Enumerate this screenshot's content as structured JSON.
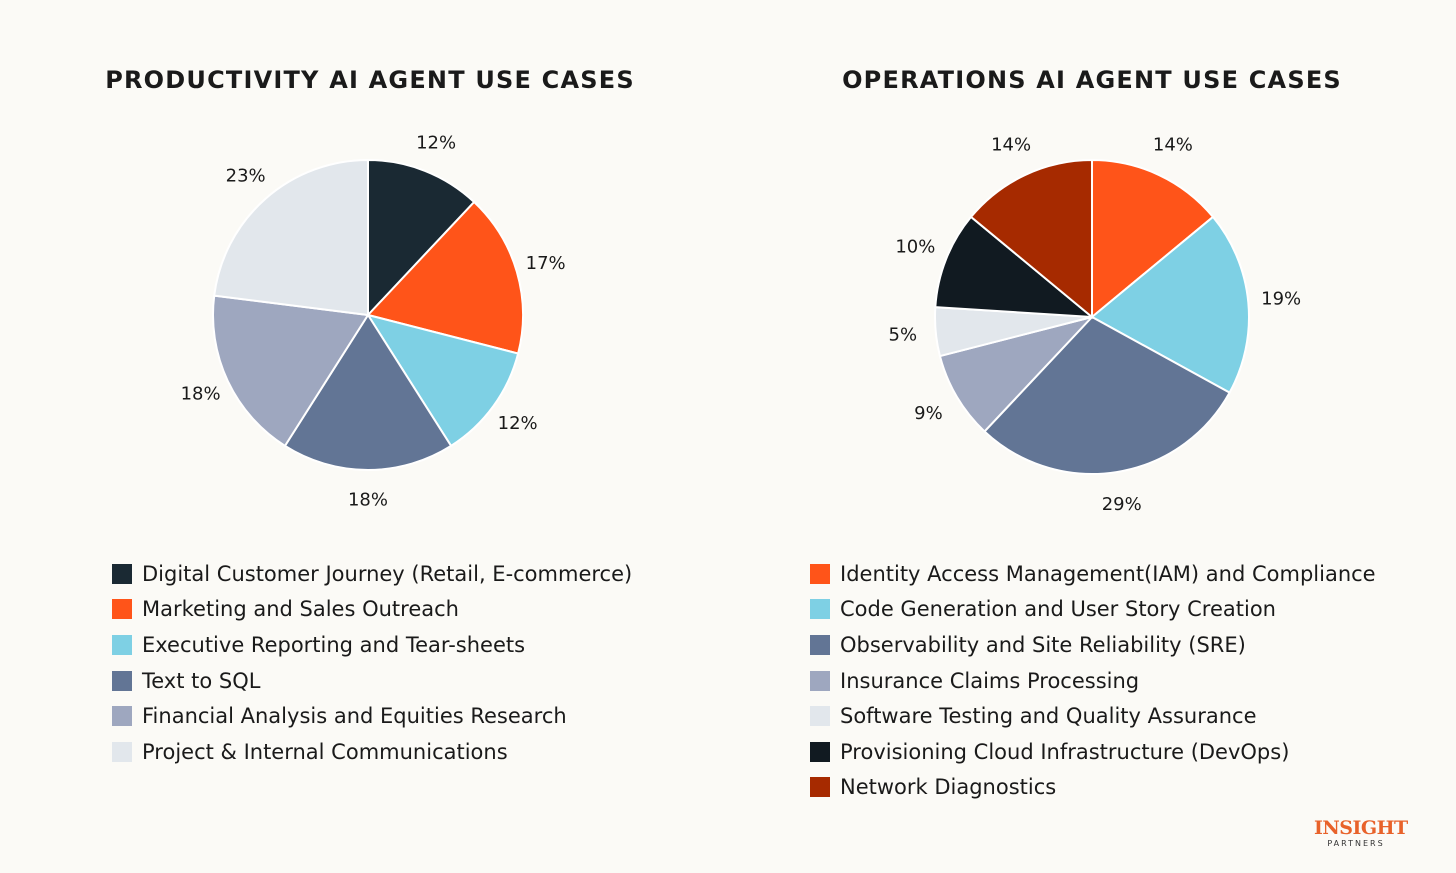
{
  "chart_data": [
    {
      "type": "pie",
      "title": "PRODUCTIVITY AI AGENT USE CASES",
      "slices": [
        {
          "label": "Digital Customer Journey (Retail, E-commerce)",
          "value": 12,
          "value_label": "12%",
          "color": "#1a2933"
        },
        {
          "label": "Marketing and Sales Outreach",
          "value": 17,
          "value_label": "17%",
          "color": "#ff5419"
        },
        {
          "label": "Executive Reporting and Tear-sheets",
          "value": 12,
          "value_label": "12%",
          "color": "#7ed0e4"
        },
        {
          "label": "Text to SQL",
          "value": 18,
          "value_label": "18%",
          "color": "#627595"
        },
        {
          "label": "Financial Analysis and Equities Research",
          "value": 18,
          "value_label": "18%",
          "color": "#9ea7bf"
        },
        {
          "label": "Project & Internal Communications",
          "value": 23,
          "value_label": "23%",
          "color": "#e2e7ec"
        }
      ]
    },
    {
      "type": "pie",
      "title": "OPERATIONS AI AGENT USE CASES",
      "slices": [
        {
          "label": "Identity Access Management(IAM) and Compliance",
          "value": 14,
          "value_label": "14%",
          "color": "#ff5419"
        },
        {
          "label": "Code Generation and User Story Creation",
          "value": 19,
          "value_label": "19%",
          "color": "#7ed0e4"
        },
        {
          "label": "Observability and Site Reliability (SRE)",
          "value": 29,
          "value_label": "29%",
          "color": "#627595"
        },
        {
          "label": "Insurance Claims Processing",
          "value": 9,
          "value_label": "9%",
          "color": "#9ea7bf"
        },
        {
          "label": "Software Testing and Quality Assurance",
          "value": 5,
          "value_label": "5%",
          "color": "#e2e7ec"
        },
        {
          "label": "Provisioning Cloud Infrastructure (DevOps)",
          "value": 10,
          "value_label": "10%",
          "color": "#111a21"
        },
        {
          "label": "Network Diagnostics",
          "value": 14,
          "value_label": "14%",
          "color": "#a62a00"
        }
      ]
    }
  ],
  "logo": {
    "name": "INSIGHT",
    "subtitle": "PARTNERS",
    "color": "#e8622a"
  }
}
